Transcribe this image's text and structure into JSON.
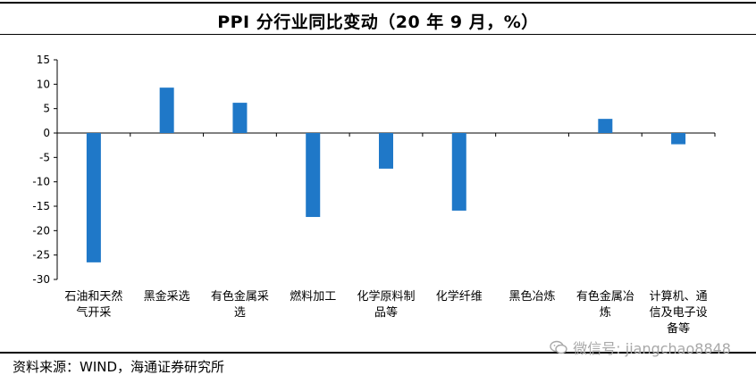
{
  "title": "PPI 分行业同比变动（20 年 9 月，%）",
  "source": "资料来源：WIND，海通证券研究所",
  "watermark": "微信号: jiangchao8848",
  "chart_data": {
    "type": "bar",
    "title": "PPI 分行业同比变动（20 年 9 月，%）",
    "xlabel": "",
    "ylabel": "",
    "ylim": [
      -30,
      15
    ],
    "yticks": [
      15,
      10,
      5,
      0,
      -5,
      -10,
      -15,
      -20,
      -25,
      -30
    ],
    "bar_color": "#1f78c8",
    "grid": false,
    "categories": [
      [
        "石油和天然",
        "气开采"
      ],
      [
        "黑金采选"
      ],
      [
        "有色金属采",
        "选"
      ],
      [
        "燃料加工"
      ],
      [
        "化学原料制",
        "品等"
      ],
      [
        "化学纤维"
      ],
      [
        "黑色冶炼"
      ],
      [
        "有色金属冶",
        "炼"
      ],
      [
        "计算机、通",
        "信及电子设",
        "备等"
      ]
    ],
    "values": [
      -26.5,
      9.3,
      6.2,
      -17.2,
      -7.3,
      -15.9,
      0,
      2.9,
      -2.3
    ]
  }
}
